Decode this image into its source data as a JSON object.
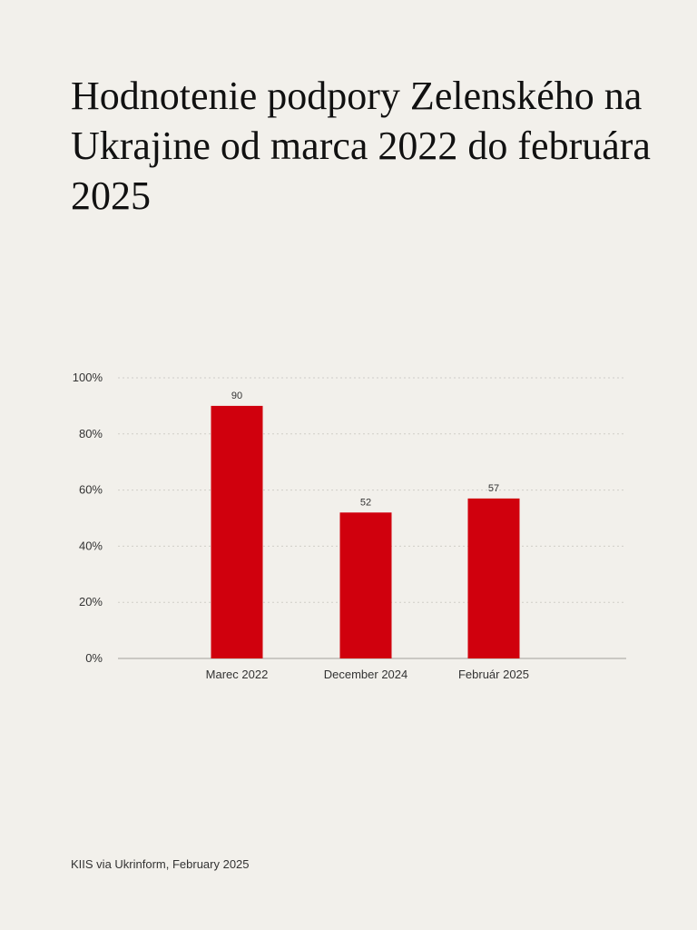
{
  "title": "Hodnotenie podpory Zelenského na Ukrajine od marca 2022 do februára 2025",
  "source": "KIIS via Ukrinform, February 2025",
  "colors": {
    "background": "#f2f0eb",
    "bar": "#d0000d",
    "grid": "#cfcdc8",
    "axis": "#bdbbb6",
    "text": "#333333"
  },
  "chart_data": {
    "type": "bar",
    "categories": [
      "Marec 2022",
      "December 2024",
      "Február 2025"
    ],
    "values": [
      90,
      52,
      57
    ],
    "data_labels": [
      "90",
      "52",
      "57"
    ],
    "ylim": [
      0,
      100
    ],
    "yticks": [
      0,
      20,
      40,
      60,
      80,
      100
    ],
    "ytick_labels": [
      "0%",
      "20%",
      "40%",
      "60%",
      "80%",
      "100%"
    ],
    "grid": true,
    "grid_style": "dotted",
    "legend": false
  }
}
